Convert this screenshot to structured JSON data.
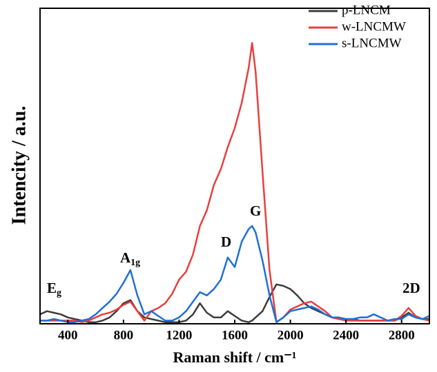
{
  "chart_data": {
    "type": "line",
    "x_label": "Raman shift / cm⁻¹",
    "y_label": "Intencity / a.u.",
    "x": [
      200,
      250,
      300,
      350,
      400,
      450,
      500,
      550,
      600,
      650,
      700,
      750,
      800,
      850,
      900,
      950,
      1000,
      1050,
      1100,
      1150,
      1200,
      1250,
      1300,
      1350,
      1400,
      1450,
      1500,
      1550,
      1600,
      1650,
      1700,
      1725,
      1750,
      1800,
      1850,
      1900,
      1950,
      2000,
      2050,
      2100,
      2150,
      2200,
      2250,
      2300,
      2350,
      2400,
      2450,
      2500,
      2550,
      2600,
      2650,
      2700,
      2750,
      2800,
      2850,
      2900,
      2950,
      3000
    ],
    "series": [
      {
        "name": "p-LNCM",
        "color": "#3c3c3c",
        "values": [
          3,
          4,
          3.5,
          3,
          2,
          1.5,
          1,
          0.5,
          0.5,
          1,
          2,
          4,
          6.5,
          7.5,
          4,
          2,
          1.5,
          1,
          0.5,
          0.5,
          0.5,
          1,
          3,
          6.5,
          3.5,
          2,
          2,
          4,
          2.5,
          1,
          0.5,
          1,
          2,
          4,
          8.5,
          12.5,
          12,
          11,
          9,
          6.5,
          5,
          4,
          3,
          2,
          1.5,
          1.5,
          1.5,
          1,
          1,
          1,
          1,
          1,
          1,
          2,
          3.5,
          2,
          1.5,
          1.5
        ]
      },
      {
        "name": "w-LNCMW",
        "color": "#e83e3e",
        "values": [
          1,
          1,
          1,
          1,
          1,
          1,
          0.5,
          1,
          2,
          3,
          3.5,
          4.5,
          6,
          7,
          4,
          1,
          4,
          5,
          6.5,
          9.5,
          14,
          16.5,
          22,
          31,
          36,
          44,
          49,
          56,
          62,
          70,
          81,
          89,
          80,
          48,
          17,
          0.5,
          2,
          4.5,
          5.5,
          6.5,
          7,
          5.5,
          4,
          2,
          1.5,
          1,
          1,
          1,
          1,
          1,
          1,
          1,
          1,
          2.5,
          5,
          2.5,
          1.5,
          1
        ]
      },
      {
        "name": "s-LNCMW",
        "color": "#1f6fd8",
        "values": [
          1,
          1,
          1.5,
          1,
          0.5,
          0.5,
          1,
          1.5,
          3,
          5,
          7,
          9.5,
          13,
          17,
          9,
          3,
          4,
          2.5,
          1,
          1,
          2,
          4,
          7,
          10,
          9,
          11,
          14,
          21,
          18,
          26,
          30,
          31,
          29,
          20,
          9,
          0.5,
          2,
          4,
          4.5,
          5,
          5.5,
          4.5,
          3,
          2,
          2,
          1.5,
          1.5,
          2,
          2,
          3,
          2,
          1,
          1.5,
          1.5,
          3,
          2,
          1.5,
          2.5
        ]
      }
    ],
    "annotations": [
      {
        "text": "E",
        "subscript": "g"
      },
      {
        "text": "A",
        "subscript": "1g"
      },
      {
        "text": "D"
      },
      {
        "text": "G"
      },
      {
        "text": "2D"
      }
    ],
    "xlim": [
      200,
      3000
    ],
    "ylim": [
      0,
      100
    ],
    "xticks": [
      400,
      800,
      1200,
      1600,
      2000,
      2400,
      2800
    ],
    "legend": "upper-right"
  }
}
